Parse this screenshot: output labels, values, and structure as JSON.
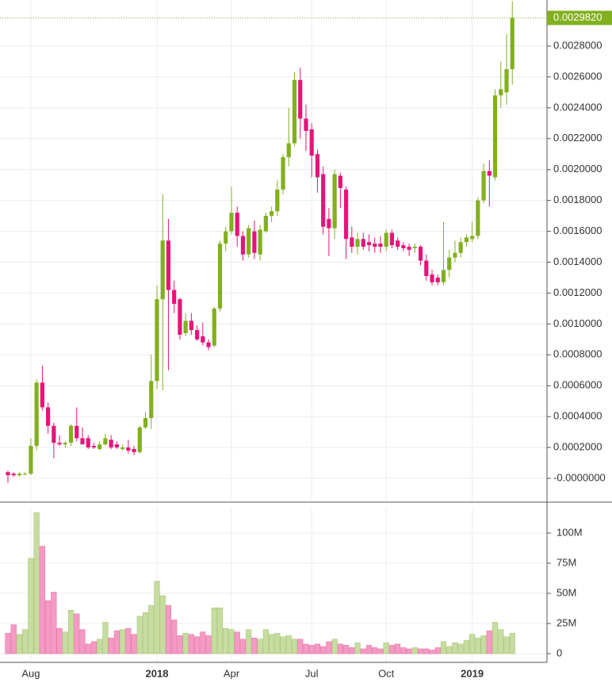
{
  "chart_data": {
    "type": "candlestick",
    "categories": [
      null,
      null,
      null,
      null,
      "Aug",
      null,
      null,
      null,
      null,
      null,
      null,
      null,
      null,
      null,
      null,
      null,
      null,
      null,
      null,
      null,
      null,
      null,
      null,
      null,
      null,
      null,
      "2018",
      null,
      null,
      null,
      null,
      null,
      null,
      null,
      null,
      null,
      null,
      null,
      null,
      "Apr",
      null,
      null,
      null,
      null,
      null,
      null,
      null,
      null,
      null,
      null,
      null,
      null,
      null,
      "Jul",
      null,
      null,
      null,
      null,
      null,
      null,
      null,
      null,
      null,
      null,
      null,
      null,
      "Oct",
      null,
      null,
      null,
      null,
      null,
      null,
      null,
      null,
      null,
      null,
      null,
      null,
      null,
      null,
      "2019",
      null,
      null,
      null,
      null,
      null,
      null,
      null
    ],
    "open": [
      4e-05,
      3e-05,
      2e-05,
      3e-05,
      3e-05,
      0.00021,
      0.00062,
      0.00046,
      0.00034,
      0.00023,
      0.00022,
      0.00023,
      0.00034,
      0.00026,
      0.00026,
      0.00021,
      0.00019,
      0.00022,
      0.00025,
      0.00022,
      0.00019,
      0.0002,
      0.00019,
      0.00017,
      0.00033,
      0.00039,
      0.00063,
      0.00116,
      0.00154,
      0.00122,
      0.00116,
      0.00094,
      0.00102,
      0.00096,
      0.00092,
      0.00088,
      0.00086,
      0.0011,
      0.00152,
      0.0016,
      0.00172,
      0.00157,
      0.00145,
      0.0016,
      0.00145,
      0.0016,
      0.0017,
      0.00173,
      0.00187,
      0.00208,
      0.00217,
      0.00258,
      0.00233,
      0.00226,
      0.0021,
      0.00197,
      0.00168,
      0.00162,
      0.00196,
      0.00187,
      0.00156,
      0.0015,
      0.00155,
      0.00153,
      0.00152,
      0.00152,
      0.0015,
      0.00159,
      0.00154,
      0.00151,
      0.0015,
      0.00149,
      0.0015,
      0.00141,
      0.00132,
      0.0013,
      0.00127,
      0.00135,
      0.00143,
      0.00146,
      0.00153,
      0.00155,
      0.00157,
      0.0018,
      0.00199,
      0.00195,
      0.00248,
      0.0025,
      0.00265
    ],
    "high": [
      5e-05,
      4e-05,
      4e-05,
      4e-05,
      0.00026,
      0.00064,
      0.00073,
      0.00049,
      0.00036,
      0.00028,
      0.00024,
      0.00035,
      0.00046,
      0.00033,
      0.00028,
      0.00023,
      0.00024,
      0.00029,
      0.00028,
      0.00024,
      0.00022,
      0.00025,
      0.00021,
      0.00034,
      0.00043,
      0.0008,
      0.00125,
      0.00184,
      0.00168,
      0.00128,
      0.00117,
      0.00107,
      0.00107,
      0.00099,
      0.00101,
      0.0009,
      0.00111,
      0.00154,
      0.00163,
      0.00189,
      0.00176,
      0.0016,
      0.00164,
      0.00167,
      0.00164,
      0.00172,
      0.00176,
      0.00193,
      0.0021,
      0.0024,
      0.00263,
      0.00266,
      0.00242,
      0.0023,
      0.00213,
      0.00202,
      0.00175,
      0.002,
      0.00198,
      0.00189,
      0.00163,
      0.00159,
      0.00159,
      0.00158,
      0.00156,
      0.00157,
      0.00161,
      0.00161,
      0.00156,
      0.00153,
      0.00152,
      0.00152,
      0.00151,
      0.00145,
      0.00135,
      0.00132,
      0.00166,
      0.00148,
      0.00154,
      0.00156,
      0.00158,
      0.00166,
      0.00182,
      0.00204,
      0.00206,
      0.00252,
      0.0027,
      0.00288,
      0.00309
    ],
    "low": [
      -3e-05,
      1e-05,
      1e-05,
      2e-05,
      2e-05,
      0.00018,
      0.00044,
      0.00029,
      0.00013,
      0.00021,
      0.0002,
      0.00021,
      0.00024,
      0.00022,
      0.00019,
      0.00019,
      0.00018,
      0.00021,
      0.00019,
      0.00019,
      0.00018,
      0.00016,
      0.00015,
      0.00016,
      0.00032,
      0.00032,
      0.00058,
      0.00057,
      0.0007,
      0.00107,
      0.0009,
      0.00092,
      0.00093,
      0.00089,
      0.00086,
      0.00083,
      0.00085,
      0.00108,
      0.00147,
      0.00158,
      0.0015,
      0.00141,
      0.00143,
      0.00142,
      0.00141,
      0.00159,
      0.00166,
      0.0017,
      0.00184,
      0.00202,
      0.00215,
      0.0022,
      0.00212,
      0.00195,
      0.00185,
      0.00158,
      0.00144,
      0.00155,
      0.00175,
      0.00142,
      0.00146,
      0.00145,
      0.00148,
      0.00147,
      0.00146,
      0.00146,
      0.00147,
      0.00149,
      0.00148,
      0.00147,
      0.00144,
      0.00146,
      0.00138,
      0.00128,
      0.00125,
      0.00125,
      0.00125,
      0.0013,
      0.0014,
      0.00143,
      0.0015,
      0.00153,
      0.00155,
      0.00178,
      0.00176,
      0.00193,
      0.0024,
      0.00242,
      0.00255
    ],
    "close": [
      2e-05,
      2e-05,
      3e-05,
      3e-05,
      0.00021,
      0.00062,
      0.00046,
      0.00034,
      0.00023,
      0.00022,
      0.00023,
      0.00034,
      0.00026,
      0.00022,
      0.0002,
      0.0002,
      0.00022,
      0.00026,
      0.0002,
      0.0002,
      0.0002,
      0.00018,
      0.00017,
      0.00033,
      0.00039,
      0.00063,
      0.00116,
      0.00154,
      0.00122,
      0.00113,
      0.00093,
      0.00102,
      0.00096,
      0.0009,
      0.00088,
      0.00085,
      0.0011,
      0.00152,
      0.0016,
      0.00172,
      0.00157,
      0.00145,
      0.00162,
      0.00146,
      0.00161,
      0.0017,
      0.00173,
      0.00187,
      0.00208,
      0.00217,
      0.00258,
      0.00233,
      0.00225,
      0.00209,
      0.00195,
      0.00163,
      0.00162,
      0.00197,
      0.00188,
      0.00155,
      0.0015,
      0.00155,
      0.0015,
      0.00151,
      0.0015,
      0.0015,
      0.00159,
      0.00151,
      0.0015,
      0.00149,
      0.00148,
      0.0015,
      0.00141,
      0.00131,
      0.00127,
      0.00127,
      0.00135,
      0.00143,
      0.00146,
      0.00153,
      0.00156,
      0.00157,
      0.0018,
      0.00199,
      0.00196,
      0.00248,
      0.00252,
      0.00265,
      0.002982
    ],
    "volume": [
      17,
      24,
      16,
      20,
      79,
      117,
      89,
      44,
      51,
      21,
      18,
      36,
      33,
      20,
      8,
      10,
      12,
      26,
      13,
      19,
      20,
      21,
      16,
      31,
      34,
      40,
      60,
      48,
      40,
      28,
      15,
      17,
      16,
      14,
      18,
      15,
      38,
      38,
      21,
      20,
      18,
      12,
      20,
      13,
      12,
      20,
      16,
      17,
      14,
      15,
      12,
      12,
      8,
      7,
      8,
      6,
      10,
      12,
      8,
      7,
      5,
      9,
      4,
      7,
      5,
      4,
      9,
      7,
      8,
      5,
      4,
      5,
      4,
      4,
      3,
      5,
      10,
      6,
      9,
      8,
      11,
      16,
      13,
      15,
      19,
      26,
      20,
      14,
      17
    ],
    "last_label": "0.0029820",
    "ylim": [
      -0.000149,
      0.003098
    ],
    "yticks": [
      {
        "value": 0,
        "label": "-0.0000000"
      },
      {
        "value": 0.0002,
        "label": "0.0002000"
      },
      {
        "value": 0.0004,
        "label": "0.0004000"
      },
      {
        "value": 0.0006,
        "label": "0.0006000"
      },
      {
        "value": 0.0008,
        "label": "0.0008000"
      },
      {
        "value": 0.001,
        "label": "0.0010000"
      },
      {
        "value": 0.0012,
        "label": "0.0012000"
      },
      {
        "value": 0.0014,
        "label": "0.0014000"
      },
      {
        "value": 0.0016,
        "label": "0.0016000"
      },
      {
        "value": 0.0018,
        "label": "0.0018000"
      },
      {
        "value": 0.002,
        "label": "0.0020000"
      },
      {
        "value": 0.0022,
        "label": "0.0022000"
      },
      {
        "value": 0.0024,
        "label": "0.0024000"
      },
      {
        "value": 0.0026,
        "label": "0.0026000"
      },
      {
        "value": 0.0028,
        "label": "0.0028000"
      }
    ],
    "y2lim": [
      -7.2,
      121
    ],
    "y2ticks": [
      0,
      {
        "value": 25,
        "label": "25M"
      },
      {
        "value": 50,
        "label": "50M"
      },
      {
        "value": 75,
        "label": "75M"
      },
      {
        "value": 100,
        "label": "100M"
      }
    ],
    "grid": true,
    "up_color": "#82b01e",
    "down_color": "#e5157a",
    "up_volume_color": "#c7dca0",
    "down_volume_color": "#f49ac4"
  }
}
